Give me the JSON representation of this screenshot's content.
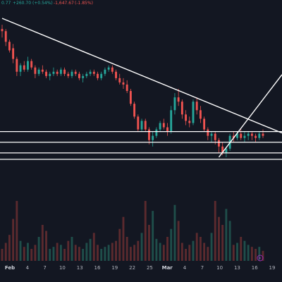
{
  "header": {
    "price_fragment": "0.77",
    "change_abs": "+260.70",
    "change_pct": "(+0.54%)",
    "change2_abs": "-1,647.67",
    "change2_pct": "(-1.85%)"
  },
  "colors": {
    "background": "#131722",
    "up": "#26a69a",
    "down": "#ef5350",
    "up_volume": "#1f4e4a",
    "down_volume": "#5b2a2e",
    "drawing": "#ffffff",
    "axis_text": "#b2b5be",
    "flag": "#9c27b0"
  },
  "chart_data": {
    "type": "candlestick",
    "x_tick_labels": [
      "Feb",
      "4",
      "7",
      "10",
      "13",
      "16",
      "19",
      "22",
      "25",
      "Mar",
      "4",
      "7",
      "10",
      "13",
      "16",
      "19"
    ],
    "bold_tick_labels": [
      "Feb",
      "Mar"
    ],
    "candles": [
      [
        88,
        90,
        84,
        87
      ],
      [
        87,
        88,
        80,
        82
      ],
      [
        82,
        83,
        77,
        78
      ],
      [
        79,
        81,
        72,
        74
      ],
      [
        74,
        75,
        66,
        68
      ],
      [
        68,
        72,
        66,
        71
      ],
      [
        71,
        73,
        68,
        69
      ],
      [
        69,
        75,
        68,
        73
      ],
      [
        73,
        74,
        69,
        70
      ],
      [
        70,
        71,
        65,
        67
      ],
      [
        67,
        70,
        66,
        69
      ],
      [
        69,
        71,
        67,
        68
      ],
      [
        68,
        69,
        65,
        66
      ],
      [
        66,
        68,
        64,
        67
      ],
      [
        67,
        70,
        66,
        68
      ],
      [
        68,
        69,
        66,
        67
      ],
      [
        67,
        70,
        66,
        69
      ],
      [
        69,
        70,
        66,
        67
      ],
      [
        67,
        68,
        65,
        66
      ],
      [
        66,
        69,
        65,
        68
      ],
      [
        68,
        69,
        66,
        67
      ],
      [
        67,
        68,
        64,
        65
      ],
      [
        65,
        67,
        63,
        66
      ],
      [
        66,
        68,
        65,
        67
      ],
      [
        67,
        69,
        66,
        68
      ],
      [
        68,
        69,
        66,
        67
      ],
      [
        67,
        68,
        64,
        65
      ],
      [
        65,
        68,
        64,
        67
      ],
      [
        67,
        70,
        66,
        69
      ],
      [
        69,
        71,
        68,
        70
      ],
      [
        70,
        71,
        67,
        68
      ],
      [
        68,
        69,
        64,
        65
      ],
      [
        65,
        67,
        62,
        63
      ],
      [
        63,
        65,
        60,
        62
      ],
      [
        62,
        64,
        58,
        59
      ],
      [
        59,
        60,
        52,
        53
      ],
      [
        53,
        54,
        46,
        47
      ],
      [
        47,
        48,
        40,
        41
      ],
      [
        41,
        46,
        40,
        45
      ],
      [
        45,
        46,
        40,
        41
      ],
      [
        41,
        42,
        34,
        36
      ],
      [
        36,
        40,
        33,
        38
      ],
      [
        38,
        42,
        37,
        41
      ],
      [
        41,
        45,
        40,
        44
      ],
      [
        44,
        46,
        41,
        42
      ],
      [
        42,
        44,
        38,
        40
      ],
      [
        40,
        52,
        39,
        50
      ],
      [
        50,
        58,
        48,
        56
      ],
      [
        56,
        60,
        52,
        54
      ],
      [
        54,
        55,
        46,
        48
      ],
      [
        48,
        50,
        43,
        45
      ],
      [
        45,
        47,
        42,
        44
      ],
      [
        44,
        55,
        43,
        54
      ],
      [
        54,
        56,
        48,
        50
      ],
      [
        50,
        52,
        44,
        46
      ],
      [
        46,
        47,
        40,
        41
      ],
      [
        41,
        42,
        36,
        38
      ],
      [
        38,
        40,
        35,
        39
      ],
      [
        39,
        40,
        34,
        36
      ],
      [
        36,
        37,
        30,
        33
      ],
      [
        33,
        35,
        29,
        30
      ],
      [
        30,
        33,
        28,
        32
      ],
      [
        32,
        39,
        31,
        38
      ],
      [
        38,
        40,
        35,
        37
      ],
      [
        37,
        40,
        36,
        39
      ],
      [
        39,
        41,
        36,
        37
      ],
      [
        37,
        40,
        35,
        38
      ],
      [
        38,
        40,
        36,
        39
      ],
      [
        39,
        40,
        36,
        38
      ],
      [
        38,
        39,
        35,
        37
      ],
      [
        37,
        40,
        36,
        39
      ],
      [
        39,
        41,
        37,
        38
      ]
    ],
    "volume": [
      6,
      9,
      13,
      21,
      30,
      10,
      7,
      9,
      6,
      8,
      12,
      18,
      15,
      6,
      7,
      9,
      8,
      6,
      10,
      12,
      8,
      7,
      6,
      9,
      11,
      14,
      8,
      6,
      7,
      8,
      9,
      10,
      16,
      22,
      12,
      7,
      8,
      10,
      14,
      30,
      18,
      25,
      11,
      9,
      8,
      12,
      16,
      28,
      20,
      9,
      6,
      8,
      10,
      14,
      12,
      9,
      7,
      14,
      30,
      22,
      18,
      26,
      20,
      8,
      9,
      12,
      10,
      8,
      7,
      6,
      7,
      5
    ],
    "drawings": {
      "trendlines": [
        {
          "from_candle": 0,
          "from_price": 93,
          "to_candle": 71,
          "to_price": 43
        },
        {
          "from_candle": 59,
          "from_price": 28,
          "to_candle": 71,
          "to_price": 55
        }
      ],
      "horizontal_levels": [
        40,
        35,
        30,
        27
      ]
    }
  }
}
